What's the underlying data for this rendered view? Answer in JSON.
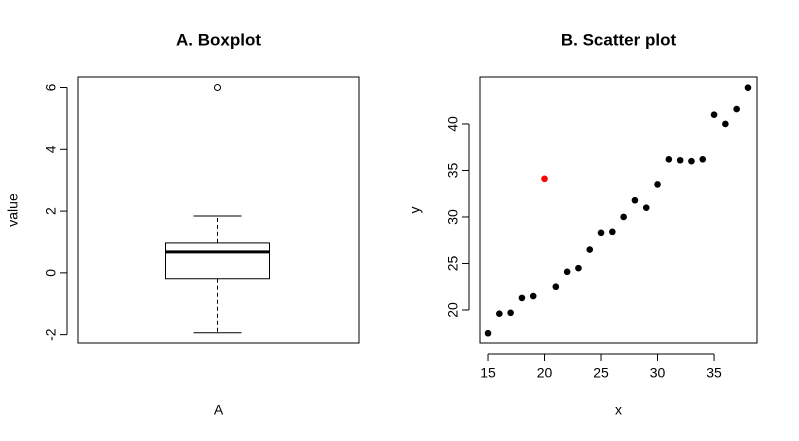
{
  "chart_data": [
    {
      "type": "box",
      "title": "A. Boxplot",
      "xlabel": "A",
      "ylabel": "value",
      "boxes": [
        {
          "whisker_low": -1.94,
          "q1": -0.19,
          "median": 0.68,
          "q3": 0.97,
          "whisker_high": 1.84,
          "outliers": [
            6
          ]
        }
      ],
      "ylim": [
        -2.27,
        6.34
      ],
      "yticks": [
        -2,
        0,
        2,
        4,
        6
      ]
    },
    {
      "type": "scatter",
      "title": "B. Scatter plot",
      "xlabel": "x",
      "ylabel": "y",
      "x": [
        15,
        16,
        17,
        18,
        19,
        20,
        21,
        22,
        23,
        24,
        25,
        26,
        27,
        28,
        29,
        30,
        31,
        32,
        33,
        34,
        35,
        36,
        37,
        38
      ],
      "y": [
        17.5,
        19.6,
        19.7,
        21.3,
        21.5,
        34.1,
        22.5,
        24.1,
        24.5,
        26.5,
        28.3,
        28.4,
        30.0,
        31.8,
        31.0,
        33.5,
        36.2,
        36.1,
        36.0,
        36.2,
        41.0,
        40.0,
        41.6,
        43.9
      ],
      "colors": [
        "#000000",
        "#000000",
        "#000000",
        "#000000",
        "#000000",
        "#ff0000",
        "#000000",
        "#000000",
        "#000000",
        "#000000",
        "#000000",
        "#000000",
        "#000000",
        "#000000",
        "#000000",
        "#000000",
        "#000000",
        "#000000",
        "#000000",
        "#000000",
        "#000000",
        "#000000",
        "#000000",
        "#000000"
      ],
      "xlim": [
        14.29,
        38.8
      ],
      "ylim": [
        16.45,
        45.05
      ],
      "xticks": [
        15,
        20,
        25,
        30,
        35
      ],
      "yticks": [
        20,
        25,
        30,
        35,
        40
      ]
    }
  ]
}
